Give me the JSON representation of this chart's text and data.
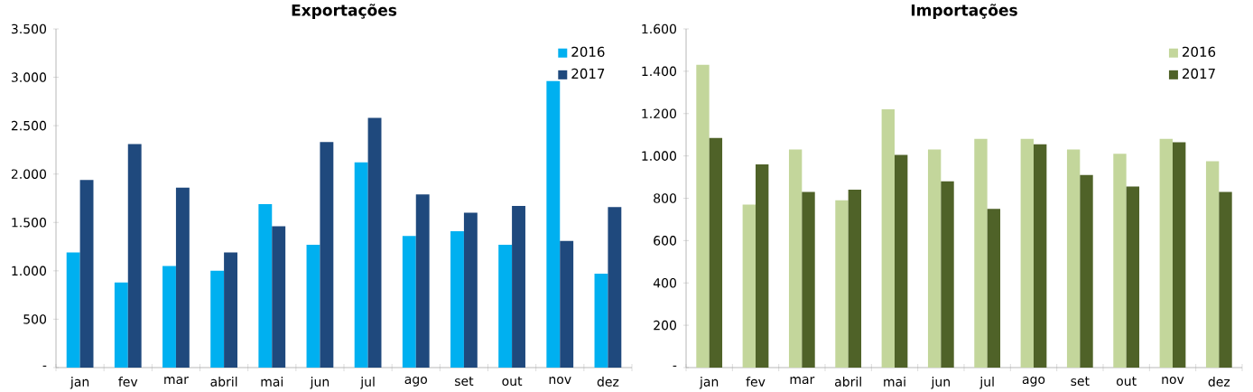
{
  "chart_data": [
    {
      "type": "bar",
      "title": "Exportações",
      "categories": [
        "jan",
        "fev",
        "mar",
        "abril",
        "mai",
        "jun",
        "jul",
        "ago",
        "set",
        "out",
        "nov",
        "dez"
      ],
      "series": [
        {
          "name": "2016",
          "color": "#00b0f0",
          "values": [
            1190,
            880,
            1050,
            1000,
            1690,
            1270,
            2120,
            1360,
            1410,
            1270,
            2960,
            970
          ]
        },
        {
          "name": "2017",
          "color": "#1f497d",
          "values": [
            1940,
            2310,
            1860,
            1190,
            1460,
            2330,
            2580,
            1790,
            1600,
            1670,
            1310,
            1660
          ]
        }
      ],
      "ylim": [
        0,
        3500
      ],
      "yticks": [
        {
          "value": 0,
          "label": "-"
        },
        500,
        {
          "value": 1000,
          "label": "1.000"
        },
        {
          "value": 1500,
          "label": "1.500"
        },
        {
          "value": 2000,
          "label": "2.000"
        },
        {
          "value": 2500,
          "label": "2.500"
        },
        {
          "value": 3000,
          "label": "3.000"
        },
        {
          "value": 3500,
          "label": "3.500"
        }
      ],
      "legend": "top right"
    },
    {
      "type": "bar",
      "title": "Importações",
      "categories": [
        "jan",
        "fev",
        "mar",
        "abril",
        "mai",
        "jun",
        "jul",
        "ago",
        "set",
        "out",
        "nov",
        "dez"
      ],
      "series": [
        {
          "name": "2016",
          "color": "#c3d69b",
          "values": [
            1430,
            770,
            1030,
            790,
            1220,
            1030,
            1080,
            1080,
            1030,
            1010,
            1080,
            975
          ]
        },
        {
          "name": "2017",
          "color": "#4f6228",
          "values": [
            1085,
            960,
            830,
            840,
            1005,
            880,
            750,
            1055,
            910,
            855,
            1065,
            830
          ]
        }
      ],
      "ylim": [
        0,
        1600
      ],
      "yticks": [
        {
          "value": 0,
          "label": "-"
        },
        200,
        400,
        600,
        800,
        {
          "value": 1000,
          "label": "1.000"
        },
        {
          "value": 1200,
          "label": "1.200"
        },
        {
          "value": 1400,
          "label": "1.400"
        },
        {
          "value": 1600,
          "label": "1.600"
        }
      ],
      "legend": "top right"
    }
  ]
}
